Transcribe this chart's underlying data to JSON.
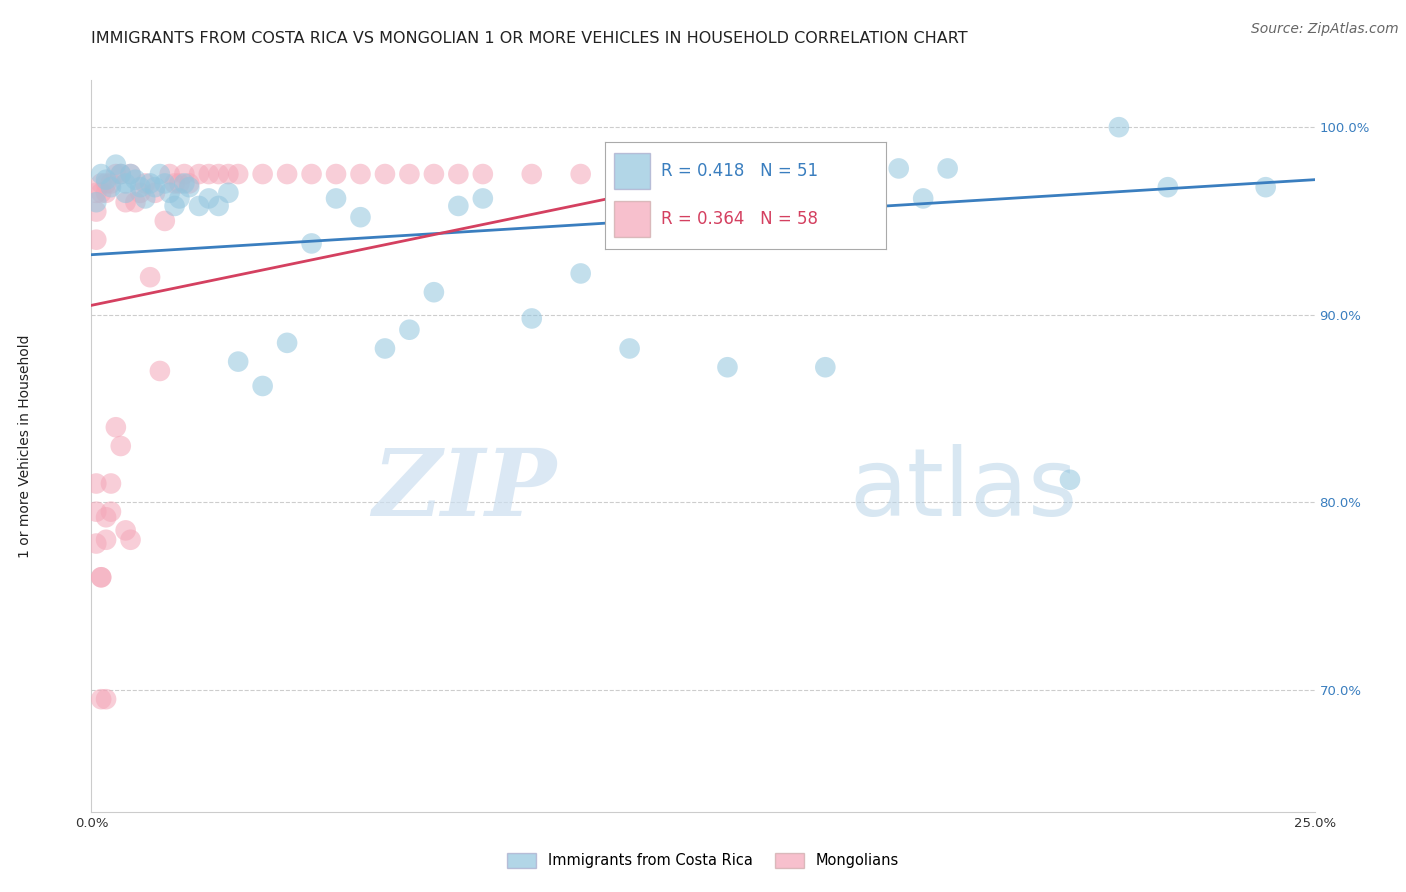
{
  "title": "IMMIGRANTS FROM COSTA RICA VS MONGOLIAN 1 OR MORE VEHICLES IN HOUSEHOLD CORRELATION CHART",
  "source": "Source: ZipAtlas.com",
  "ylabel": "1 or more Vehicles in Household",
  "legend_blue_label": "Immigrants from Costa Rica",
  "legend_pink_label": "Mongolians",
  "legend_R_blue": "R = 0.418",
  "legend_N_blue": "N = 51",
  "legend_R_pink": "R = 0.364",
  "legend_N_pink": "N = 58",
  "blue_color": "#92c5de",
  "pink_color": "#f4a6b8",
  "blue_line_color": "#3a7ebf",
  "pink_line_color": "#d44060",
  "legend_text_blue": "#3a7ebf",
  "legend_text_pink": "#d44060",
  "watermark_zip": "ZIP",
  "watermark_atlas": "atlas",
  "background_color": "#ffffff",
  "grid_color": "#c8c8c8",
  "xlim": [
    0.0,
    0.25
  ],
  "ylim": [
    0.635,
    1.025
  ],
  "yticks": [
    0.7,
    0.8,
    0.9,
    1.0
  ],
  "ytick_labels": [
    "70.0%",
    "80.0%",
    "90.0%",
    "100.0%"
  ],
  "xtick_labels": [
    "0.0%",
    "",
    "",
    "",
    "",
    "25.0%"
  ],
  "title_fontsize": 11.5,
  "source_fontsize": 10,
  "axis_label_fontsize": 10,
  "blue_x": [
    0.001,
    0.002,
    0.003,
    0.004,
    0.005,
    0.006,
    0.007,
    0.007,
    0.008,
    0.009,
    0.01,
    0.011,
    0.012,
    0.013,
    0.014,
    0.015,
    0.016,
    0.017,
    0.018,
    0.019,
    0.02,
    0.022,
    0.024,
    0.026,
    0.028,
    0.03,
    0.035,
    0.04,
    0.045,
    0.05,
    0.055,
    0.06,
    0.065,
    0.07,
    0.075,
    0.08,
    0.09,
    0.1,
    0.11,
    0.12,
    0.13,
    0.14,
    0.15,
    0.17,
    0.2,
    0.22,
    0.24,
    0.155,
    0.165,
    0.175,
    0.21
  ],
  "blue_y": [
    0.96,
    0.975,
    0.972,
    0.968,
    0.98,
    0.975,
    0.97,
    0.965,
    0.975,
    0.972,
    0.968,
    0.962,
    0.97,
    0.968,
    0.975,
    0.97,
    0.965,
    0.958,
    0.962,
    0.97,
    0.968,
    0.958,
    0.962,
    0.958,
    0.965,
    0.875,
    0.862,
    0.885,
    0.938,
    0.962,
    0.952,
    0.882,
    0.892,
    0.912,
    0.958,
    0.962,
    0.898,
    0.922,
    0.882,
    0.97,
    0.872,
    0.968,
    0.872,
    0.962,
    0.812,
    0.968,
    0.968,
    0.978,
    0.978,
    0.978,
    1.0
  ],
  "pink_x": [
    0.001,
    0.001,
    0.001,
    0.002,
    0.002,
    0.003,
    0.003,
    0.004,
    0.005,
    0.006,
    0.007,
    0.008,
    0.009,
    0.01,
    0.011,
    0.012,
    0.013,
    0.014,
    0.015,
    0.016,
    0.017,
    0.018,
    0.019,
    0.02,
    0.022,
    0.024,
    0.026,
    0.028,
    0.03,
    0.035,
    0.04,
    0.045,
    0.05,
    0.055,
    0.06,
    0.065,
    0.07,
    0.075,
    0.08,
    0.09,
    0.1,
    0.11,
    0.12,
    0.001,
    0.002,
    0.003,
    0.004,
    0.005,
    0.006,
    0.007,
    0.008,
    0.002,
    0.003,
    0.004,
    0.001,
    0.002,
    0.003,
    0.001
  ],
  "pink_y": [
    0.94,
    0.955,
    0.965,
    0.97,
    0.965,
    0.97,
    0.965,
    0.97,
    0.975,
    0.975,
    0.96,
    0.975,
    0.96,
    0.965,
    0.97,
    0.92,
    0.965,
    0.87,
    0.95,
    0.975,
    0.97,
    0.97,
    0.975,
    0.97,
    0.975,
    0.975,
    0.975,
    0.975,
    0.975,
    0.975,
    0.975,
    0.975,
    0.975,
    0.975,
    0.975,
    0.975,
    0.975,
    0.975,
    0.975,
    0.975,
    0.975,
    0.975,
    0.975,
    0.795,
    0.76,
    0.792,
    0.81,
    0.84,
    0.83,
    0.785,
    0.78,
    0.695,
    0.78,
    0.795,
    0.81,
    0.76,
    0.695,
    0.778
  ],
  "blue_line_x": [
    0.0,
    0.25
  ],
  "blue_line_y": [
    0.932,
    0.972
  ],
  "pink_line_x": [
    0.0,
    0.13
  ],
  "pink_line_y": [
    0.905,
    0.975
  ]
}
